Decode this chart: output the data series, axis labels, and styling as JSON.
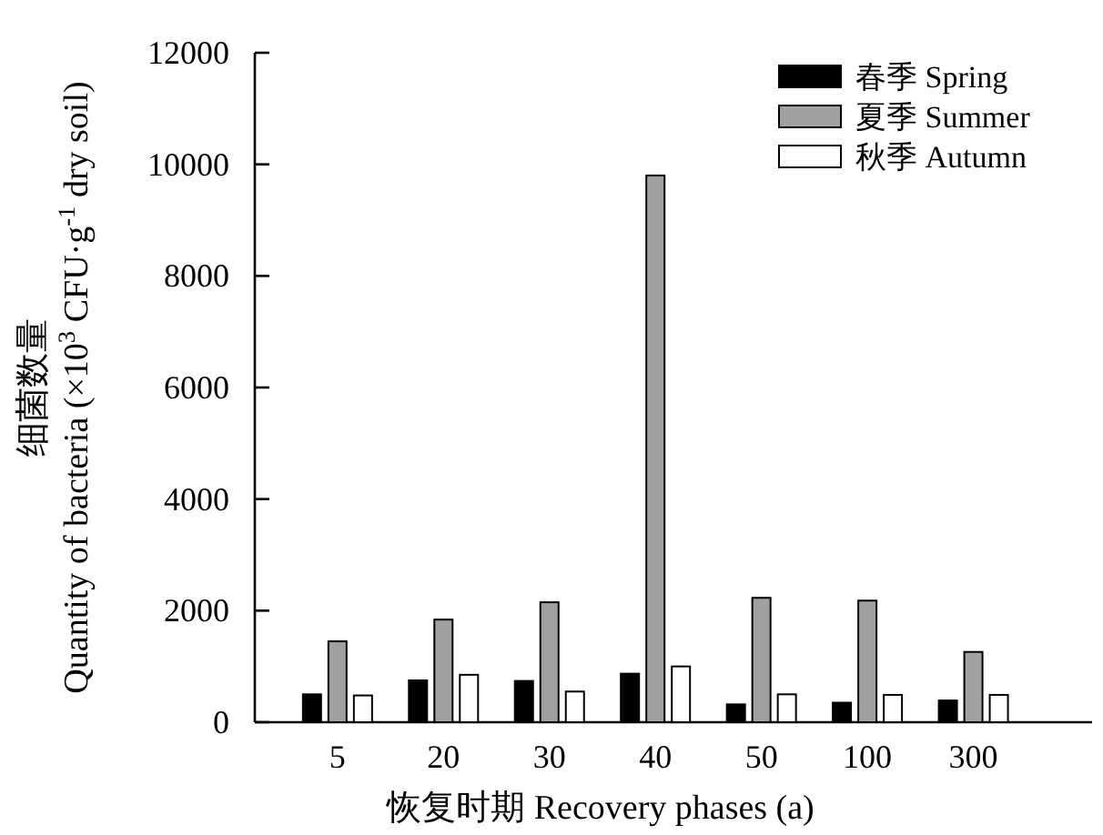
{
  "chart_data": {
    "type": "bar",
    "xlabel": "恢复时期 Recovery phases (a)",
    "ylabel": "细菌数量 Quantity of bacteria (×10$^{3}$ CFU·g$^{-1}$ dry soil)",
    "categories": [
      "5",
      "20",
      "30",
      "40",
      "50",
      "100",
      "300"
    ],
    "series": [
      {
        "name": "春季 Spring",
        "color": "#000000",
        "values": [
          500,
          750,
          740,
          870,
          320,
          350,
          390
        ]
      },
      {
        "name": "夏季 Summer",
        "color": "#a0a0a0",
        "values": [
          1450,
          1840,
          2150,
          9800,
          2230,
          2180,
          1260
        ]
      },
      {
        "name": "秋季 Autumn",
        "color": "#ffffff",
        "values": [
          480,
          850,
          550,
          1000,
          500,
          490,
          490
        ]
      }
    ],
    "ylim": [
      0,
      12000
    ],
    "yticks": [
      0,
      2000,
      4000,
      6000,
      8000,
      10000,
      12000
    ],
    "grid": false,
    "legend": "top right"
  }
}
